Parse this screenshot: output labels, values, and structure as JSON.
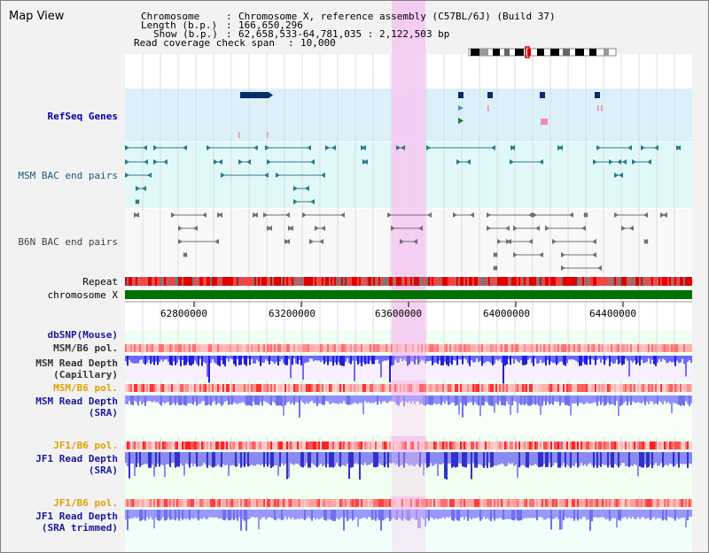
{
  "window": {
    "title": "Map View"
  },
  "header": {
    "chromosome_key": "Chromosome",
    "chromosome_value": "Chromosome X, reference assembly (C57BL/6J) (Build 37)",
    "length_key": "Length (b.p.)",
    "length_value": "166,650,296",
    "show_key": "Show (b.p.)",
    "show_value": "62,658,533-64,781,035 : 2,122,503 bp",
    "coverage_key": "Read coverage check span",
    "coverage_value": "10,000"
  },
  "tracks": {
    "refseq": "RefSeq Genes",
    "msm_bac": "MSM BAC end pairs",
    "b6n_bac": "B6N BAC end pairs",
    "repeat": "Repeat",
    "chromosome": "chromosome X",
    "dbsnp": "dbSNP(Mouse)",
    "msm_b6_pol_1": "MSM/B6 pol.",
    "msm_depth_cap_1": "MSM Read Depth",
    "msm_depth_cap_2": "(Capillary)",
    "msm_b6_pol_2": "MSM/B6 pol.",
    "msm_depth_sra_1": "MSM Read Depth",
    "msm_depth_sra_2": "(SRA)",
    "jf1_b6_pol_1": "JF1/B6 pol.",
    "jf1_depth_sra_1": "JF1 Read Depth",
    "jf1_depth_sra_2": "(SRA)",
    "jf1_b6_pol_2": "JF1/B6 pol.",
    "jf1_depth_trim_1": "JF1 Read Depth",
    "jf1_depth_trim_2": "(SRA trimmed)"
  },
  "ruler": {
    "ticks": [
      "62800000",
      "63200000",
      "63600000",
      "64000000",
      "64400000"
    ]
  },
  "colors": {
    "highlight": "#f5c8f0",
    "refseq_bg": "#dcf0fa",
    "bac_bg": "#e0f8f8",
    "chromosome": "#007000",
    "gene": "#0a2a6a",
    "msm_pair": "#2a7a8a",
    "b6n_pair": "#707070"
  }
}
